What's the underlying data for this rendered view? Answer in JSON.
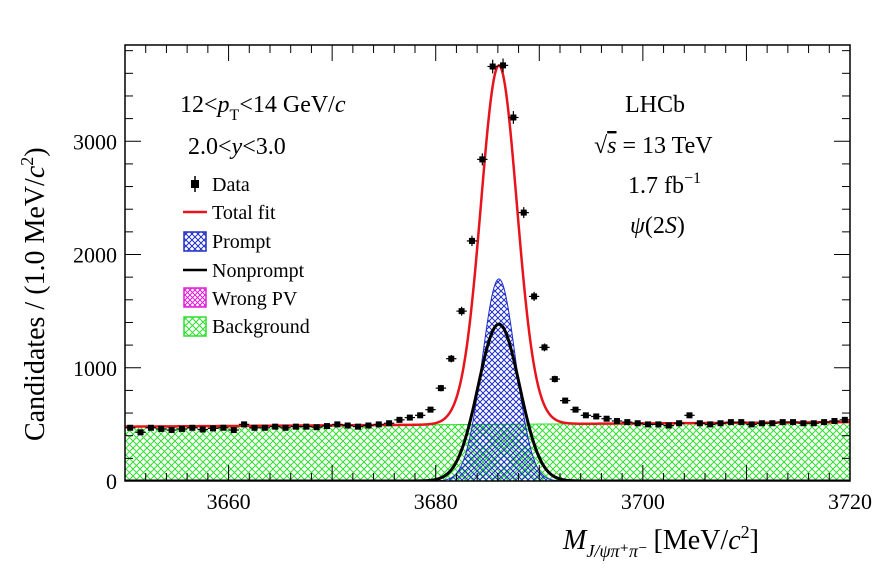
{
  "chart_data": {
    "type": "scatter",
    "title": "",
    "xlabel": "",
    "ylabel": "",
    "xlim": [
      3650,
      3720
    ],
    "ylim": [
      0,
      3850
    ],
    "x_ticks": [
      3660,
      3680,
      3700,
      3720
    ],
    "y_ticks": [
      0,
      1000,
      2000,
      3000
    ],
    "grid": false,
    "legend_position": "top-left",
    "labels": {
      "ylabel_main": "Candidates / (1.0 MeV/",
      "ylabel_c": "c",
      "ylabel_exp": "2",
      "ylabel_close": ")",
      "xlabel_M": "M",
      "xlabel_sub": "J/ψπ⁺π⁻",
      "xlabel_unit": "[MeV/",
      "xlabel_c": "c",
      "xlabel_exp": "2",
      "xlabel_close": "]"
    },
    "annotations": {
      "pt_prefix": "12<",
      "pt_p": "p",
      "pt_sub": "T",
      "pt_suffix": "<14 GeV/",
      "pt_c": "c",
      "y_prefix": "2.0<",
      "y_var": "y",
      "y_suffix": "<3.0",
      "experiment": "LHCb",
      "sqrt_sym": "√",
      "sqrt_s": "s",
      "energy": " = 13 TeV",
      "lumi": "1.7 fb",
      "lumi_exp": "−1",
      "psi": "ψ",
      "psi_state_open": "(2",
      "psi_state_S": "S",
      "psi_state_close": ")"
    },
    "legend": [
      {
        "label": "Data",
        "style": "marker"
      },
      {
        "label": "Total fit",
        "style": "line",
        "color": "#e8141b"
      },
      {
        "label": "Prompt",
        "style": "hatch",
        "color": "#1f2ec8"
      },
      {
        "label": "Nonprompt",
        "style": "line",
        "color": "#000000"
      },
      {
        "label": "Wrong PV",
        "style": "hatch",
        "color": "#e01ed8"
      },
      {
        "label": "Background",
        "style": "hatch",
        "color": "#2ee02e"
      }
    ],
    "colors": {
      "total_fit": "#e8141b",
      "prompt": "#1f2ec8",
      "nonprompt": "#000000",
      "wrong_pv": "#e01ed8",
      "background": "#2ee02e",
      "data": "#000000"
    },
    "series": [
      {
        "name": "Data",
        "x": [
          3650.5,
          3651.5,
          3652.5,
          3653.5,
          3654.5,
          3655.5,
          3656.5,
          3657.5,
          3658.5,
          3659.5,
          3660.5,
          3661.5,
          3662.5,
          3663.5,
          3664.5,
          3665.5,
          3666.5,
          3667.5,
          3668.5,
          3669.5,
          3670.5,
          3671.5,
          3672.5,
          3673.5,
          3674.5,
          3675.5,
          3676.5,
          3677.5,
          3678.5,
          3679.5,
          3680.5,
          3681.5,
          3682.5,
          3683.5,
          3684.5,
          3685.5,
          3686.5,
          3687.5,
          3688.5,
          3689.5,
          3690.5,
          3691.5,
          3692.5,
          3693.5,
          3694.5,
          3695.5,
          3696.5,
          3697.5,
          3698.5,
          3699.5,
          3700.5,
          3701.5,
          3702.5,
          3703.5,
          3704.5,
          3705.5,
          3706.5,
          3707.5,
          3708.5,
          3709.5,
          3710.5,
          3711.5,
          3712.5,
          3713.5,
          3714.5,
          3715.5,
          3716.5,
          3717.5,
          3718.5,
          3719.5
        ],
        "values": [
          470,
          430,
          470,
          460,
          450,
          460,
          470,
          455,
          465,
          470,
          450,
          500,
          470,
          470,
          480,
          470,
          480,
          480,
          475,
          485,
          500,
          490,
          480,
          490,
          500,
          510,
          540,
          560,
          580,
          630,
          820,
          1080,
          1500,
          2120,
          2840,
          3660,
          3670,
          3210,
          2370,
          1630,
          1180,
          900,
          710,
          630,
          580,
          570,
          550,
          530,
          520,
          510,
          500,
          500,
          490,
          510,
          580,
          510,
          500,
          510,
          520,
          520,
          500,
          510,
          510,
          520,
          520,
          510,
          510,
          520,
          530,
          540
        ]
      }
    ],
    "components": {
      "prompt": {
        "amplitude": 1520,
        "mean": 3686.1,
        "sigma": 1.6
      },
      "nonprompt": {
        "amplitude": 1180,
        "mean": 3686.1,
        "sigma": 2.0
      },
      "background": {
        "start": 480,
        "end": 520
      },
      "total_fit_peak": 3670
    }
  }
}
